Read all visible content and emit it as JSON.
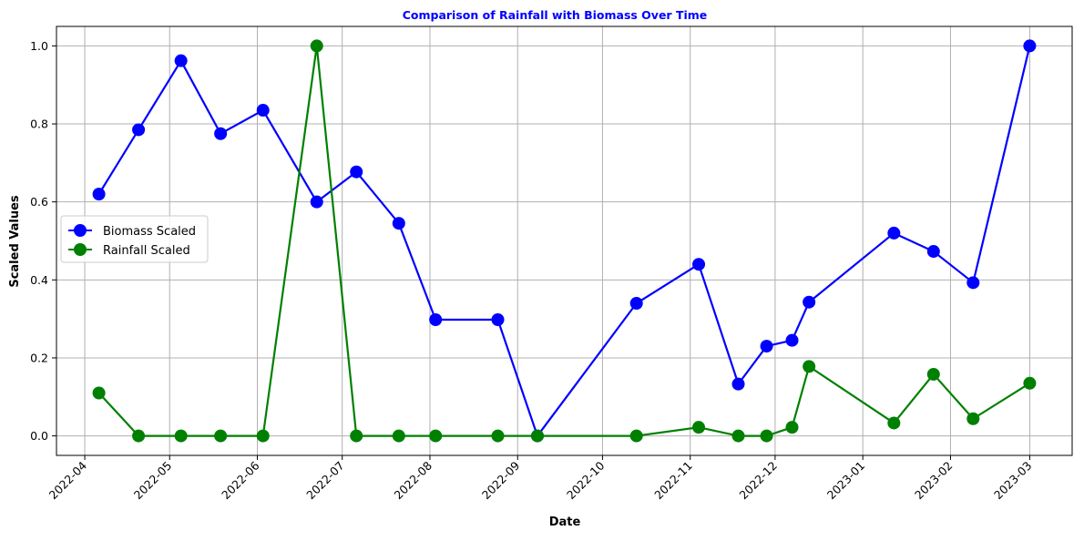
{
  "chart_data": {
    "type": "line",
    "title": "Comparison of Rainfall with Biomass Over Time",
    "xlabel": "Date",
    "ylabel": "Scaled Values",
    "x_ticks": [
      "2022-04",
      "2022-05",
      "2022-06",
      "2022-07",
      "2022-08",
      "2022-09",
      "2022-10",
      "2022-11",
      "2022-12",
      "2023-01",
      "2023-02",
      "2023-03"
    ],
    "y_ticks": [
      "0.0",
      "0.2",
      "0.4",
      "0.6",
      "0.8",
      "1.0"
    ],
    "ylim": [
      -0.05,
      1.05
    ],
    "xlim": [
      "2022-03-22",
      "2023-03-16"
    ],
    "grid": true,
    "legend_position": "center-left",
    "colors": {
      "title": "#0000ff",
      "biomass": "#0000ff",
      "rainfall": "#008000",
      "grid": "#b0b0b0"
    },
    "x": [
      "2022-04-06",
      "2022-04-20",
      "2022-05-05",
      "2022-05-19",
      "2022-06-03",
      "2022-06-22",
      "2022-07-06",
      "2022-07-21",
      "2022-08-03",
      "2022-08-25",
      "2022-09-08",
      "2022-10-13",
      "2022-11-04",
      "2022-11-18",
      "2022-11-28",
      "2022-12-07",
      "2022-12-13",
      "2023-01-12",
      "2023-01-26",
      "2023-02-09",
      "2023-03-01"
    ],
    "series": [
      {
        "name": "Biomass Scaled",
        "color_key": "biomass",
        "values": [
          0.62,
          0.785,
          0.962,
          0.775,
          0.835,
          0.6,
          0.677,
          0.545,
          0.298,
          0.298,
          0.0,
          0.34,
          0.44,
          0.133,
          0.23,
          0.245,
          0.343,
          0.52,
          0.473,
          0.393,
          1.0
        ]
      },
      {
        "name": "Rainfall Scaled",
        "color_key": "rainfall",
        "values": [
          0.11,
          0.0,
          0.0,
          0.0,
          0.0,
          1.0,
          0.0,
          0.0,
          0.0,
          0.0,
          0.0,
          0.0,
          0.022,
          0.0,
          0.0,
          0.022,
          0.178,
          0.033,
          0.158,
          0.044,
          0.135
        ]
      }
    ]
  }
}
